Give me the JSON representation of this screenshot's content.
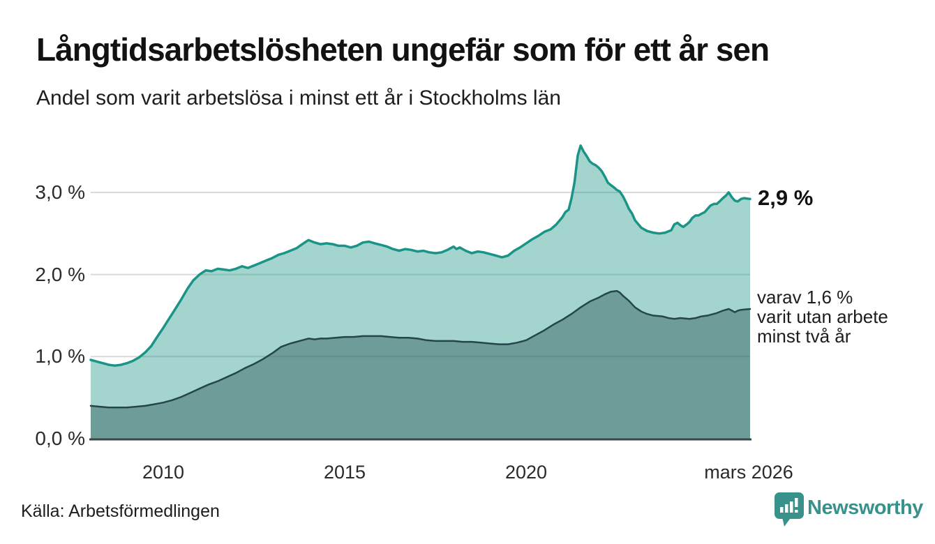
{
  "header": {
    "title": "Långtidsarbetslösheten ungefär som för ett år sen",
    "subtitle": "Andel som varit arbetslösa i minst ett år i Stockholms län"
  },
  "annotations": {
    "total_label": "2,9 %",
    "subset_lines": [
      "varav 1,6 %",
      "varit utan arbete",
      "minst två år"
    ]
  },
  "footer": {
    "source": "Källa: Arbetsförmedlingen",
    "brand_name": "Newsworthy"
  },
  "colors": {
    "accent_teal": "#1b9488",
    "dark_teal": "#24464a",
    "light_area": "#9fd3cd",
    "dark_area": "#6fa19d",
    "gridline": "#d9d9d9",
    "axis": "#3b4747",
    "brand": "#38918a",
    "text": "#1d1d1d"
  },
  "chart_data": {
    "type": "area",
    "title": "Långtidsarbetslösheten ungefär som för ett år sen",
    "xlabel": "",
    "ylabel": "",
    "x_domain": [
      2008.0,
      2026.17
    ],
    "y_domain": [
      0,
      3.815
    ],
    "grid": true,
    "legend": "none (direct line labels at right)",
    "y_ticks": [
      {
        "v": 3,
        "label": "3,0 %"
      },
      {
        "v": 2,
        "label": "2,0 %"
      },
      {
        "v": 1,
        "label": "1,0 %"
      },
      {
        "v": 0,
        "label": "0,0 %"
      }
    ],
    "x_ticks": [
      {
        "t": 2010,
        "label": "2010"
      },
      {
        "t": 2015,
        "label": "2015"
      },
      {
        "t": 2020,
        "label": "2020"
      },
      {
        "t": 2026.17,
        "label": "mars 2026"
      }
    ],
    "series": [
      {
        "name": "Arbetslösa minst ett år",
        "end_label": "2,9 %",
        "line_color": "#1b9488",
        "line_width": 3.5,
        "fill_color": "#199384",
        "fill_opacity": 0.4,
        "points": [
          [
            2008.0,
            0.96
          ],
          [
            2008.17,
            0.94
          ],
          [
            2008.33,
            0.92
          ],
          [
            2008.5,
            0.9
          ],
          [
            2008.67,
            0.89
          ],
          [
            2008.83,
            0.9
          ],
          [
            2009.0,
            0.92
          ],
          [
            2009.17,
            0.95
          ],
          [
            2009.33,
            0.99
          ],
          [
            2009.5,
            1.05
          ],
          [
            2009.67,
            1.13
          ],
          [
            2009.83,
            1.24
          ],
          [
            2010.0,
            1.35
          ],
          [
            2010.17,
            1.47
          ],
          [
            2010.33,
            1.58
          ],
          [
            2010.5,
            1.7
          ],
          [
            2010.67,
            1.83
          ],
          [
            2010.83,
            1.93
          ],
          [
            2011.0,
            2.0
          ],
          [
            2011.17,
            2.05
          ],
          [
            2011.33,
            2.04
          ],
          [
            2011.5,
            2.07
          ],
          [
            2011.67,
            2.06
          ],
          [
            2011.83,
            2.05
          ],
          [
            2012.0,
            2.07
          ],
          [
            2012.17,
            2.1
          ],
          [
            2012.33,
            2.08
          ],
          [
            2012.5,
            2.11
          ],
          [
            2012.67,
            2.14
          ],
          [
            2012.83,
            2.17
          ],
          [
            2013.0,
            2.2
          ],
          [
            2013.17,
            2.24
          ],
          [
            2013.33,
            2.26
          ],
          [
            2013.5,
            2.29
          ],
          [
            2013.67,
            2.32
          ],
          [
            2013.83,
            2.37
          ],
          [
            2014.0,
            2.42
          ],
          [
            2014.17,
            2.39
          ],
          [
            2014.33,
            2.37
          ],
          [
            2014.5,
            2.38
          ],
          [
            2014.67,
            2.37
          ],
          [
            2014.83,
            2.35
          ],
          [
            2015.0,
            2.35
          ],
          [
            2015.17,
            2.33
          ],
          [
            2015.33,
            2.35
          ],
          [
            2015.5,
            2.39
          ],
          [
            2015.67,
            2.4
          ],
          [
            2015.83,
            2.38
          ],
          [
            2016.0,
            2.36
          ],
          [
            2016.17,
            2.34
          ],
          [
            2016.33,
            2.31
          ],
          [
            2016.5,
            2.29
          ],
          [
            2016.67,
            2.31
          ],
          [
            2016.83,
            2.3
          ],
          [
            2017.0,
            2.28
          ],
          [
            2017.17,
            2.29
          ],
          [
            2017.33,
            2.27
          ],
          [
            2017.5,
            2.26
          ],
          [
            2017.67,
            2.27
          ],
          [
            2017.83,
            2.3
          ],
          [
            2018.0,
            2.34
          ],
          [
            2018.08,
            2.31
          ],
          [
            2018.17,
            2.33
          ],
          [
            2018.33,
            2.29
          ],
          [
            2018.5,
            2.26
          ],
          [
            2018.67,
            2.28
          ],
          [
            2018.83,
            2.27
          ],
          [
            2019.0,
            2.25
          ],
          [
            2019.17,
            2.23
          ],
          [
            2019.33,
            2.21
          ],
          [
            2019.5,
            2.23
          ],
          [
            2019.67,
            2.29
          ],
          [
            2019.83,
            2.33
          ],
          [
            2020.0,
            2.38
          ],
          [
            2020.17,
            2.43
          ],
          [
            2020.33,
            2.47
          ],
          [
            2020.5,
            2.52
          ],
          [
            2020.67,
            2.55
          ],
          [
            2020.83,
            2.61
          ],
          [
            2021.0,
            2.7
          ],
          [
            2021.08,
            2.76
          ],
          [
            2021.17,
            2.79
          ],
          [
            2021.25,
            2.93
          ],
          [
            2021.33,
            3.12
          ],
          [
            2021.42,
            3.45
          ],
          [
            2021.5,
            3.57
          ],
          [
            2021.58,
            3.5
          ],
          [
            2021.67,
            3.44
          ],
          [
            2021.75,
            3.38
          ],
          [
            2021.83,
            3.35
          ],
          [
            2021.92,
            3.33
          ],
          [
            2022.0,
            3.3
          ],
          [
            2022.08,
            3.26
          ],
          [
            2022.17,
            3.19
          ],
          [
            2022.25,
            3.12
          ],
          [
            2022.33,
            3.09
          ],
          [
            2022.42,
            3.06
          ],
          [
            2022.5,
            3.03
          ],
          [
            2022.58,
            3.01
          ],
          [
            2022.67,
            2.95
          ],
          [
            2022.75,
            2.88
          ],
          [
            2022.83,
            2.8
          ],
          [
            2022.92,
            2.74
          ],
          [
            2023.0,
            2.66
          ],
          [
            2023.17,
            2.57
          ],
          [
            2023.33,
            2.53
          ],
          [
            2023.5,
            2.51
          ],
          [
            2023.67,
            2.5
          ],
          [
            2023.83,
            2.51
          ],
          [
            2024.0,
            2.54
          ],
          [
            2024.08,
            2.61
          ],
          [
            2024.17,
            2.63
          ],
          [
            2024.25,
            2.6
          ],
          [
            2024.33,
            2.58
          ],
          [
            2024.42,
            2.61
          ],
          [
            2024.5,
            2.64
          ],
          [
            2024.58,
            2.69
          ],
          [
            2024.67,
            2.72
          ],
          [
            2024.75,
            2.72
          ],
          [
            2024.83,
            2.74
          ],
          [
            2024.92,
            2.76
          ],
          [
            2025.0,
            2.8
          ],
          [
            2025.08,
            2.84
          ],
          [
            2025.17,
            2.86
          ],
          [
            2025.25,
            2.86
          ],
          [
            2025.33,
            2.89
          ],
          [
            2025.42,
            2.93
          ],
          [
            2025.5,
            2.96
          ],
          [
            2025.58,
            3.0
          ],
          [
            2025.67,
            2.94
          ],
          [
            2025.75,
            2.9
          ],
          [
            2025.83,
            2.89
          ],
          [
            2025.92,
            2.92
          ],
          [
            2026.0,
            2.93
          ],
          [
            2026.17,
            2.92
          ]
        ]
      },
      {
        "name": "varav utan arbete minst två år",
        "end_label": "varav 1,6 % varit utan arbete minst två år",
        "line_color": "#24464a",
        "line_width": 2.5,
        "fill_color": "#1e4a4c",
        "fill_opacity": 0.4,
        "points": [
          [
            2008.0,
            0.4
          ],
          [
            2008.25,
            0.39
          ],
          [
            2008.5,
            0.38
          ],
          [
            2008.75,
            0.38
          ],
          [
            2009.0,
            0.38
          ],
          [
            2009.25,
            0.39
          ],
          [
            2009.5,
            0.4
          ],
          [
            2009.75,
            0.42
          ],
          [
            2010.0,
            0.44
          ],
          [
            2010.25,
            0.47
          ],
          [
            2010.5,
            0.51
          ],
          [
            2010.75,
            0.56
          ],
          [
            2011.0,
            0.61
          ],
          [
            2011.25,
            0.66
          ],
          [
            2011.5,
            0.7
          ],
          [
            2011.75,
            0.75
          ],
          [
            2012.0,
            0.8
          ],
          [
            2012.25,
            0.86
          ],
          [
            2012.5,
            0.91
          ],
          [
            2012.75,
            0.97
          ],
          [
            2013.0,
            1.04
          ],
          [
            2013.25,
            1.12
          ],
          [
            2013.5,
            1.16
          ],
          [
            2013.75,
            1.19
          ],
          [
            2014.0,
            1.22
          ],
          [
            2014.17,
            1.21
          ],
          [
            2014.33,
            1.22
          ],
          [
            2014.5,
            1.22
          ],
          [
            2014.75,
            1.23
          ],
          [
            2015.0,
            1.24
          ],
          [
            2015.25,
            1.24
          ],
          [
            2015.5,
            1.25
          ],
          [
            2015.75,
            1.25
          ],
          [
            2016.0,
            1.25
          ],
          [
            2016.25,
            1.24
          ],
          [
            2016.5,
            1.23
          ],
          [
            2016.75,
            1.23
          ],
          [
            2017.0,
            1.22
          ],
          [
            2017.25,
            1.2
          ],
          [
            2017.5,
            1.19
          ],
          [
            2017.75,
            1.19
          ],
          [
            2018.0,
            1.19
          ],
          [
            2018.25,
            1.18
          ],
          [
            2018.5,
            1.18
          ],
          [
            2018.75,
            1.17
          ],
          [
            2019.0,
            1.16
          ],
          [
            2019.25,
            1.15
          ],
          [
            2019.5,
            1.15
          ],
          [
            2019.75,
            1.17
          ],
          [
            2020.0,
            1.2
          ],
          [
            2020.25,
            1.26
          ],
          [
            2020.5,
            1.32
          ],
          [
            2020.75,
            1.39
          ],
          [
            2021.0,
            1.45
          ],
          [
            2021.25,
            1.52
          ],
          [
            2021.5,
            1.6
          ],
          [
            2021.75,
            1.67
          ],
          [
            2022.0,
            1.72
          ],
          [
            2022.17,
            1.76
          ],
          [
            2022.33,
            1.79
          ],
          [
            2022.5,
            1.8
          ],
          [
            2022.58,
            1.78
          ],
          [
            2022.67,
            1.74
          ],
          [
            2022.83,
            1.68
          ],
          [
            2023.0,
            1.6
          ],
          [
            2023.17,
            1.55
          ],
          [
            2023.33,
            1.52
          ],
          [
            2023.5,
            1.5
          ],
          [
            2023.75,
            1.49
          ],
          [
            2023.92,
            1.47
          ],
          [
            2024.08,
            1.46
          ],
          [
            2024.25,
            1.47
          ],
          [
            2024.5,
            1.46
          ],
          [
            2024.67,
            1.47
          ],
          [
            2024.83,
            1.49
          ],
          [
            2025.0,
            1.5
          ],
          [
            2025.25,
            1.53
          ],
          [
            2025.42,
            1.56
          ],
          [
            2025.58,
            1.58
          ],
          [
            2025.67,
            1.56
          ],
          [
            2025.75,
            1.54
          ],
          [
            2025.83,
            1.56
          ],
          [
            2025.92,
            1.57
          ],
          [
            2026.17,
            1.58
          ]
        ]
      }
    ]
  }
}
